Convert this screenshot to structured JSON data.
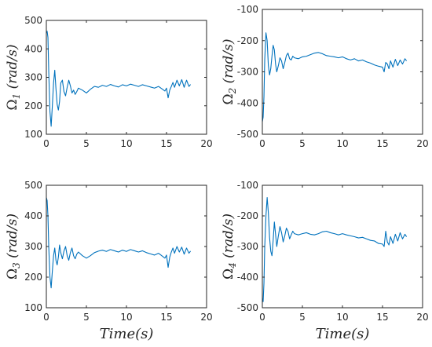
{
  "figure": {
    "panels": [
      {
        "id": "omega1",
        "ylabel_symbol": "Ω",
        "ylabel_sub": "1",
        "ylabel_unit": " (rad/s)",
        "xlabel_text": "",
        "xlim": [
          0,
          20
        ],
        "ylim": [
          100,
          500
        ],
        "xticks": [
          0,
          5,
          10,
          15,
          20
        ],
        "yticks": [
          100,
          200,
          300,
          400,
          500
        ],
        "series_color": "#0072BD"
      },
      {
        "id": "omega2",
        "ylabel_symbol": "Ω",
        "ylabel_sub": "2",
        "ylabel_unit": " (rad/s)",
        "xlabel_text": "",
        "xlim": [
          0,
          20
        ],
        "ylim": [
          -500,
          -100
        ],
        "xticks": [
          0,
          5,
          10,
          15,
          20
        ],
        "yticks": [
          -500,
          -400,
          -300,
          -200,
          -100
        ],
        "series_color": "#0072BD"
      },
      {
        "id": "omega3",
        "ylabel_symbol": "Ω",
        "ylabel_sub": "3",
        "ylabel_unit": " (rad/s)",
        "xlabel_text": "Time(s)",
        "xlim": [
          0,
          20
        ],
        "ylim": [
          100,
          500
        ],
        "xticks": [
          0,
          5,
          10,
          15,
          20
        ],
        "yticks": [
          100,
          200,
          300,
          400,
          500
        ],
        "series_color": "#0072BD"
      },
      {
        "id": "omega4",
        "ylabel_symbol": "Ω",
        "ylabel_sub": "4",
        "ylabel_unit": " (rad/s)",
        "xlabel_text": "Time(s)",
        "xlim": [
          0,
          20
        ],
        "ylim": [
          -500,
          -100
        ],
        "xticks": [
          0,
          5,
          10,
          15,
          20
        ],
        "yticks": [
          -500,
          -400,
          -300,
          -200,
          -100
        ],
        "series_color": "#0072BD"
      }
    ]
  },
  "chart_data": [
    {
      "type": "line",
      "xlim": [
        0,
        20
      ],
      "ylim": [
        100,
        500
      ],
      "grid": false,
      "series": [
        {
          "x": [
            0,
            0.1,
            0.2,
            0.3,
            0.45,
            0.6,
            0.75,
            0.9,
            1.05,
            1.2,
            1.35,
            1.5,
            1.65,
            1.8,
            2.0,
            2.2,
            2.4,
            2.6,
            2.8,
            3.0,
            3.2,
            3.4,
            3.6,
            3.8,
            4.0,
            4.5,
            5.0,
            5.5,
            6.0,
            6.5,
            7.0,
            7.5,
            8.0,
            8.5,
            9.0,
            9.5,
            10.0,
            10.5,
            11.0,
            11.5,
            12.0,
            12.5,
            13.0,
            13.5,
            14.0,
            14.5,
            14.8,
            15.0,
            15.2,
            15.4,
            15.6,
            15.8,
            16.0,
            16.3,
            16.6,
            16.9,
            17.2,
            17.5,
            17.8,
            18.0
          ],
          "y": [
            455,
            462,
            440,
            320,
            180,
            128,
            200,
            280,
            325,
            260,
            205,
            185,
            215,
            280,
            290,
            250,
            235,
            265,
            290,
            270,
            245,
            255,
            240,
            250,
            262,
            255,
            245,
            258,
            268,
            265,
            272,
            268,
            275,
            270,
            266,
            274,
            270,
            276,
            272,
            268,
            274,
            270,
            266,
            262,
            268,
            258,
            252,
            262,
            228,
            255,
            268,
            282,
            265,
            290,
            270,
            292,
            265,
            290,
            268,
            275
          ]
        }
      ]
    },
    {
      "type": "line",
      "xlim": [
        0,
        20
      ],
      "ylim": [
        -500,
        -100
      ],
      "grid": false,
      "series": [
        {
          "x": [
            0,
            0.1,
            0.2,
            0.3,
            0.45,
            0.6,
            0.75,
            0.9,
            1.05,
            1.2,
            1.35,
            1.5,
            1.65,
            1.8,
            2.0,
            2.2,
            2.4,
            2.6,
            2.8,
            3.0,
            3.2,
            3.4,
            3.6,
            3.8,
            4.0,
            4.5,
            5.0,
            5.5,
            6.0,
            6.5,
            7.0,
            7.5,
            8.0,
            8.5,
            9.0,
            9.5,
            10.0,
            10.5,
            11.0,
            11.5,
            12.0,
            12.5,
            13.0,
            13.5,
            14.0,
            14.5,
            15.0,
            15.2,
            15.4,
            15.6,
            15.8,
            16.0,
            16.3,
            16.6,
            16.9,
            17.2,
            17.5,
            17.8,
            18.0
          ],
          "y": [
            -460,
            -445,
            -380,
            -260,
            -175,
            -200,
            -280,
            -310,
            -290,
            -250,
            -215,
            -230,
            -275,
            -300,
            -280,
            -255,
            -265,
            -290,
            -270,
            -248,
            -240,
            -258,
            -262,
            -250,
            -255,
            -258,
            -252,
            -250,
            -245,
            -240,
            -238,
            -242,
            -248,
            -250,
            -252,
            -255,
            -252,
            -258,
            -262,
            -258,
            -265,
            -262,
            -268,
            -272,
            -278,
            -282,
            -285,
            -300,
            -270,
            -275,
            -290,
            -265,
            -285,
            -260,
            -280,
            -262,
            -275,
            -258,
            -265
          ]
        }
      ]
    },
    {
      "type": "line",
      "xlim": [
        0,
        20
      ],
      "ylim": [
        100,
        500
      ],
      "grid": false,
      "series": [
        {
          "x": [
            0,
            0.1,
            0.2,
            0.3,
            0.45,
            0.6,
            0.75,
            0.9,
            1.05,
            1.2,
            1.35,
            1.5,
            1.65,
            1.8,
            2.0,
            2.2,
            2.4,
            2.6,
            2.8,
            3.0,
            3.2,
            3.4,
            3.6,
            3.8,
            4.0,
            4.5,
            5.0,
            5.5,
            6.0,
            6.5,
            7.0,
            7.5,
            8.0,
            8.5,
            9.0,
            9.5,
            10.0,
            10.5,
            11.0,
            11.5,
            12.0,
            12.5,
            13.0,
            13.5,
            14.0,
            14.5,
            14.8,
            15.0,
            15.2,
            15.4,
            15.6,
            15.8,
            16.0,
            16.3,
            16.6,
            16.9,
            17.2,
            17.5,
            17.8,
            18.0
          ],
          "y": [
            460,
            450,
            400,
            300,
            200,
            165,
            220,
            270,
            295,
            255,
            240,
            265,
            305,
            280,
            260,
            285,
            300,
            270,
            255,
            280,
            295,
            270,
            260,
            275,
            282,
            270,
            262,
            270,
            280,
            285,
            288,
            284,
            290,
            286,
            282,
            288,
            284,
            290,
            286,
            282,
            286,
            280,
            276,
            272,
            278,
            268,
            262,
            272,
            232,
            265,
            282,
            295,
            278,
            300,
            282,
            298,
            275,
            295,
            278,
            285
          ]
        }
      ]
    },
    {
      "type": "line",
      "xlim": [
        0,
        20
      ],
      "ylim": [
        -500,
        -100
      ],
      "grid": false,
      "series": [
        {
          "x": [
            0,
            0.1,
            0.2,
            0.3,
            0.45,
            0.6,
            0.75,
            0.9,
            1.05,
            1.2,
            1.35,
            1.5,
            1.65,
            1.8,
            2.0,
            2.2,
            2.4,
            2.6,
            2.8,
            3.0,
            3.2,
            3.4,
            3.6,
            3.8,
            4.0,
            4.5,
            5.0,
            5.5,
            6.0,
            6.5,
            7.0,
            7.5,
            8.0,
            8.5,
            9.0,
            9.5,
            10.0,
            10.5,
            11.0,
            11.5,
            12.0,
            12.5,
            13.0,
            13.5,
            14.0,
            14.5,
            15.0,
            15.2,
            15.4,
            15.6,
            15.8,
            16.0,
            16.3,
            16.6,
            16.9,
            17.2,
            17.5,
            17.8,
            18.0
          ],
          "y": [
            -470,
            -480,
            -420,
            -300,
            -200,
            -140,
            -190,
            -270,
            -315,
            -330,
            -280,
            -220,
            -260,
            -300,
            -265,
            -235,
            -255,
            -285,
            -265,
            -240,
            -250,
            -275,
            -262,
            -250,
            -258,
            -262,
            -258,
            -255,
            -260,
            -262,
            -258,
            -252,
            -250,
            -255,
            -258,
            -262,
            -258,
            -262,
            -265,
            -268,
            -272,
            -270,
            -275,
            -280,
            -282,
            -290,
            -292,
            -300,
            -250,
            -285,
            -295,
            -268,
            -290,
            -260,
            -282,
            -255,
            -275,
            -260,
            -268
          ]
        }
      ]
    }
  ]
}
